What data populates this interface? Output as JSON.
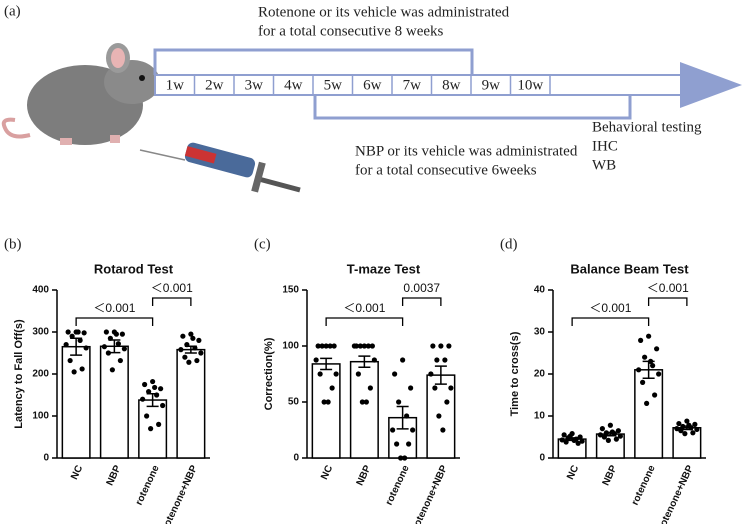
{
  "panel_a": {
    "label": "(a)",
    "top_text": [
      "Rotenone or its vehicle was administrated",
      "for a total consecutive 8 weeks"
    ],
    "weeks": [
      "1w",
      "2w",
      "3w",
      "4w",
      "5w",
      "6w",
      "7w",
      "8w",
      "9w",
      "10w"
    ],
    "bottom_text": [
      "NBP or its vehicle was administrated",
      "for a total consecutive 6weeks"
    ],
    "outcomes": [
      "Behavioral testing",
      "IHC",
      "WB"
    ]
  },
  "chart_data": [
    {
      "type": "bar",
      "panel": "(b)",
      "title": "Rotarod Test",
      "ylabel": "Latency to Fall Off(s)",
      "categories": [
        "NC",
        "NBP",
        "rotenone",
        "rotenone+NBP"
      ],
      "values": [
        265,
        266,
        138,
        258
      ],
      "errors": [
        20,
        15,
        15,
        8
      ],
      "points": [
        [
          300,
          300,
          298,
          290,
          280,
          270,
          262,
          232,
          212,
          205,
          300
        ],
        [
          300,
          300,
          295,
          285,
          272,
          265,
          260,
          250,
          232,
          210,
          295
        ],
        [
          182,
          175,
          165,
          158,
          150,
          140,
          125,
          100,
          80,
          70,
          168
        ],
        [
          295,
          290,
          280,
          270,
          262,
          258,
          250,
          240,
          232,
          228,
          285
        ]
      ],
      "ylim": [
        0,
        400
      ],
      "yticks": [
        0,
        100,
        200,
        300,
        400
      ],
      "comparisons": [
        {
          "from": "NC",
          "to": "rotenone",
          "label": "＜0.001"
        },
        {
          "from": "rotenone",
          "to": "rotenone+NBP",
          "label": "＜0.001"
        }
      ]
    },
    {
      "type": "bar",
      "panel": "(c)",
      "title": "T-maze Test",
      "ylabel": "Correction(%)",
      "categories": [
        "NC",
        "NBP",
        "rotenone",
        "rotenone+NBP"
      ],
      "values": [
        84,
        86,
        36,
        74
      ],
      "errors": [
        5,
        5,
        10,
        8
      ],
      "points": [
        [
          100,
          100,
          100,
          100,
          100,
          87.5,
          75,
          75,
          62.5,
          50,
          50
        ],
        [
          100,
          100,
          100,
          100,
          100,
          100,
          87.5,
          75,
          62.5,
          50,
          50
        ],
        [
          87.5,
          75,
          62.5,
          50,
          37.5,
          25,
          25,
          12.5,
          12.5,
          0,
          0
        ],
        [
          100,
          100,
          100,
          87.5,
          87.5,
          75,
          62.5,
          62.5,
          50,
          37.5,
          25
        ]
      ],
      "ylim": [
        0,
        150
      ],
      "yticks": [
        0,
        50,
        100,
        150
      ],
      "comparisons": [
        {
          "from": "NC",
          "to": "rotenone",
          "label": "＜0.001"
        },
        {
          "from": "rotenone",
          "to": "rotenone+NBP",
          "label": "0.0037"
        }
      ]
    },
    {
      "type": "bar",
      "panel": "(d)",
      "title": "Balance Beam Test",
      "ylabel": "Time to cross(s)",
      "categories": [
        "NC",
        "NBP",
        "rotenone",
        "rotenone+NBP"
      ],
      "values": [
        4.5,
        5.7,
        21,
        7.2
      ],
      "errors": [
        0.3,
        0.4,
        2,
        0.4
      ],
      "points": [
        [
          5.8,
          5.5,
          5,
          4.8,
          4.5,
          4.3,
          4,
          3.8,
          3.5,
          5.2,
          4.2
        ],
        [
          7.8,
          7,
          6.5,
          6,
          5.8,
          5.5,
          5.2,
          5,
          4.5,
          4.2,
          6.2
        ],
        [
          29,
          28,
          26,
          24,
          22,
          21,
          20,
          18,
          15,
          13,
          23
        ],
        [
          8.8,
          8.2,
          8,
          7.5,
          7.2,
          7,
          6.8,
          6.5,
          6,
          5.8,
          7.8
        ]
      ],
      "ylim": [
        0,
        40
      ],
      "yticks": [
        0,
        10,
        20,
        30,
        40
      ],
      "comparisons": [
        {
          "from": "NC",
          "to": "rotenone",
          "label": "＜0.001"
        },
        {
          "from": "rotenone",
          "to": "rotenone+NBP",
          "label": "＜0.001"
        }
      ]
    }
  ]
}
